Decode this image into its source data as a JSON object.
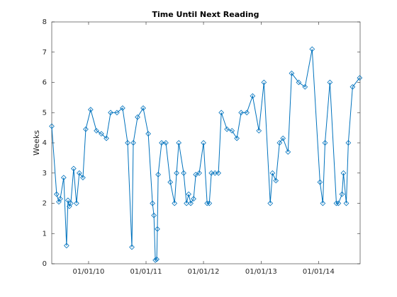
{
  "chart_data": {
    "type": "line",
    "title": "Time Until Next Reading",
    "y_label": "Weeks",
    "x": [
      "2009-05-12",
      "2009-06-12",
      "2009-06-26",
      "2009-07-05",
      "2009-07-27",
      "2009-08-14",
      "2009-08-23",
      "2009-09-01",
      "2009-09-10",
      "2009-09-28",
      "2009-10-16",
      "2009-11-03",
      "2009-11-26",
      "2009-12-14",
      "2010-01-14",
      "2010-02-20",
      "2010-03-23",
      "2010-04-24",
      "2010-05-21",
      "2010-06-30",
      "2010-08-05",
      "2010-09-06",
      "2010-10-03",
      "2010-10-12",
      "2010-11-08",
      "2010-12-14",
      "2011-01-15",
      "2011-02-11",
      "2011-02-20",
      "2011-03-01",
      "2011-03-10",
      "2011-03-14",
      "2011-03-19",
      "2011-04-10",
      "2011-05-07",
      "2011-06-04",
      "2011-07-01",
      "2011-07-14",
      "2011-07-28",
      "2011-08-28",
      "2011-09-15",
      "2011-09-29",
      "2011-10-12",
      "2011-10-30",
      "2011-11-13",
      "2011-12-05",
      "2012-01-01",
      "2012-01-24",
      "2012-02-07",
      "2012-02-20",
      "2012-03-14",
      "2012-04-05",
      "2012-04-23",
      "2012-05-29",
      "2012-06-30",
      "2012-07-31",
      "2012-08-27",
      "2012-10-02",
      "2012-11-08",
      "2012-12-18",
      "2013-01-19",
      "2013-02-28",
      "2013-03-14",
      "2013-04-05",
      "2013-04-28",
      "2013-05-20",
      "2013-06-21",
      "2013-07-14",
      "2013-08-28",
      "2013-10-07",
      "2013-11-21",
      "2014-01-10",
      "2014-01-28",
      "2014-02-11",
      "2014-03-14",
      "2014-04-24",
      "2014-05-07",
      "2014-05-30",
      "2014-06-08",
      "2014-06-26",
      "2014-07-09",
      "2014-08-05",
      "2014-09-19"
    ],
    "series": [
      {
        "name": "Weeks",
        "color": "#0072bd",
        "values": [
          4.55,
          2.3,
          2.05,
          2.15,
          2.85,
          0.6,
          2.1,
          1.9,
          2.0,
          3.15,
          2.0,
          3.0,
          2.85,
          4.45,
          5.1,
          4.4,
          4.3,
          4.15,
          5.0,
          5.0,
          5.15,
          4.0,
          0.55,
          4.0,
          4.85,
          5.15,
          4.3,
          2.0,
          1.6,
          0.12,
          0.15,
          1.15,
          2.95,
          4.0,
          4.0,
          2.7,
          2.0,
          3.0,
          4.0,
          3.0,
          2.0,
          2.3,
          2.0,
          2.15,
          2.95,
          3.0,
          4.0,
          2.0,
          2.0,
          3.0,
          3.0,
          3.0,
          5.0,
          4.45,
          4.4,
          4.15,
          5.0,
          5.0,
          5.55,
          4.4,
          6.0,
          2.0,
          3.0,
          2.75,
          4.0,
          4.15,
          3.7,
          6.3,
          6.0,
          5.85,
          7.1,
          2.7,
          2.0,
          4.0,
          6.0,
          2.0,
          2.0,
          2.3,
          3.0,
          2.0,
          4.0,
          5.85,
          6.15
        ]
      }
    ],
    "xlim": [
      "2009-05-12",
      "2014-09-22"
    ],
    "xticks": [
      {
        "value": "2010-01-01",
        "label": "01/01/10"
      },
      {
        "value": "2011-01-01",
        "label": "01/01/11"
      },
      {
        "value": "2012-01-01",
        "label": "01/01/12"
      },
      {
        "value": "2013-01-01",
        "label": "01/01/13"
      },
      {
        "value": "2014-01-01",
        "label": "01/01/14"
      }
    ],
    "ylim": [
      0,
      8
    ],
    "yticks": [
      0,
      1,
      2,
      3,
      4,
      5,
      6,
      7,
      8
    ],
    "marker": "diamond",
    "grid": false
  }
}
